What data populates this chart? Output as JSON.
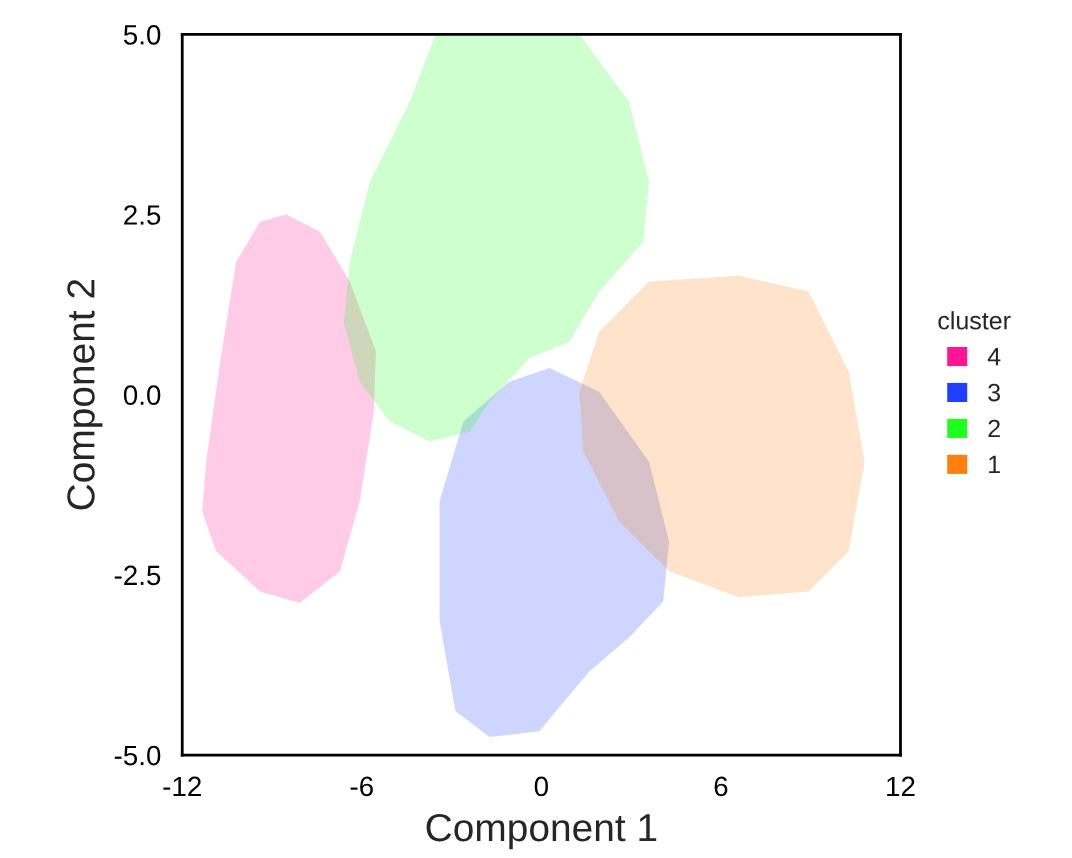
{
  "chart_data": {
    "type": "area",
    "xlabel": "Component 1",
    "ylabel": "Component 2",
    "legend_title": "cluster",
    "legend": "right",
    "grid": false,
    "xlim": [
      -12,
      12
    ],
    "xticks": [
      -12,
      -6,
      0,
      6,
      12
    ],
    "ylim": [
      -5,
      5
    ],
    "yticks": [
      {
        "value": -5,
        "label": "-5.0"
      },
      {
        "value": -2.5,
        "label": "-2.5"
      },
      {
        "value": 0,
        "label": "0.0"
      },
      {
        "value": 2.5,
        "label": "2.5"
      },
      {
        "value": 5,
        "label": "5.0"
      }
    ],
    "series": [
      {
        "name": "4",
        "color": "#ff1493",
        "x": [
          -11.2,
          -10.73,
          -10.2,
          -9.4,
          -8.53,
          -7.4,
          -6.4,
          -5.53,
          -5.6,
          -6.07,
          -6.73,
          -8.07,
          -9.4,
          -10.87,
          -11.33
        ],
        "values": [
          -0.93,
          0.46,
          1.84,
          2.4,
          2.5,
          2.26,
          1.57,
          0.6,
          -0.24,
          -1.48,
          -2.45,
          -2.89,
          -2.73,
          -2.17,
          -1.62
        ]
      },
      {
        "name": "3",
        "color": "#1f3fff",
        "x": [
          -2.6,
          -1.07,
          0.27,
          1.93,
          3.6,
          4.27,
          4.07,
          2.93,
          1.6,
          -0.07,
          -1.73,
          -2.87,
          -3.4,
          -3.4
        ],
        "values": [
          -0.37,
          0.18,
          0.37,
          0.04,
          -0.93,
          -2.04,
          -2.87,
          -3.37,
          -3.84,
          -4.67,
          -4.75,
          -4.39,
          -3.14,
          -1.48
        ]
      },
      {
        "name": "2",
        "color": "#1eff1e",
        "x": [
          -6.4,
          -5.73,
          -4.4,
          -3.53,
          1.27,
          2.93,
          3.6,
          3.4,
          1.93,
          0.93,
          -0.4,
          -1.73,
          -2.4,
          -3.73,
          -5.07,
          -6.07,
          -6.6
        ],
        "values": [
          1.84,
          2.95,
          4.06,
          5.0,
          5.0,
          4.06,
          2.95,
          2.12,
          1.43,
          0.73,
          0.51,
          -0.1,
          -0.51,
          -0.65,
          -0.37,
          0.18,
          1.0
        ]
      },
      {
        "name": "1",
        "color": "#ff7f0e",
        "x": [
          1.27,
          1.93,
          3.6,
          6.6,
          8.93,
          10.27,
          10.8,
          10.27,
          8.93,
          6.6,
          4.27,
          2.6,
          1.4
        ],
        "values": [
          0.04,
          0.87,
          1.57,
          1.65,
          1.43,
          0.32,
          -0.93,
          -2.17,
          -2.73,
          -2.81,
          -2.45,
          -1.76,
          -0.79
        ]
      }
    ]
  }
}
